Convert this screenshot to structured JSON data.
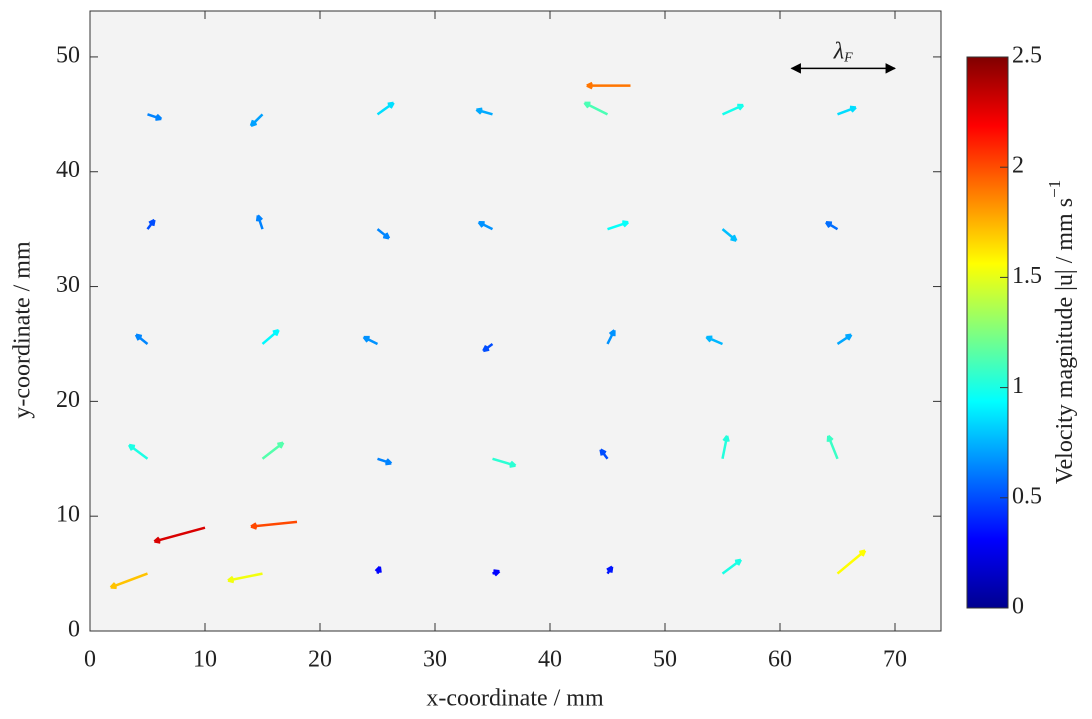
{
  "chart_data": {
    "type": "quiver",
    "xlabel": "x-coordinate / mm",
    "ylabel": "y-coordinate / mm",
    "xlim": [
      0,
      74
    ],
    "ylim": [
      0,
      54
    ],
    "xticks": [
      0,
      10,
      20,
      30,
      40,
      50,
      60,
      70
    ],
    "yticks": [
      0,
      10,
      20,
      30,
      40,
      50
    ],
    "colormap": "jet",
    "colorbar": {
      "label": "Velocity magnitude |u| / mm s",
      "label_exponent": "−1",
      "lim": [
        0,
        2.5
      ],
      "ticks": [
        0,
        0.5,
        1,
        1.5,
        2,
        2.5
      ]
    },
    "annotation": {
      "text": "λ",
      "subscript": "F",
      "x_from": 61,
      "x_to": 70,
      "y": 49
    },
    "vectors": {
      "x": [
        5,
        15,
        25,
        35,
        45,
        55,
        65,
        10,
        18,
        5,
        15,
        25,
        35,
        45,
        55,
        65,
        5,
        15,
        25,
        35,
        45,
        55,
        65,
        5,
        15,
        25,
        35,
        45,
        55,
        65,
        5,
        15,
        25,
        35,
        45,
        55,
        65,
        47
      ],
      "y": [
        5,
        5,
        5,
        5,
        5,
        5,
        5,
        9,
        9.5,
        15,
        15,
        15,
        15,
        15,
        15,
        15,
        25,
        25,
        25,
        25,
        25,
        25,
        25,
        35,
        35,
        35,
        35,
        35,
        35,
        35,
        45,
        45,
        45,
        45,
        45,
        45,
        45,
        47.5
      ],
      "u": [
        -1.6,
        -1.5,
        0.1,
        0.3,
        0.2,
        0.8,
        1.2,
        -2.2,
        -2.0,
        -0.8,
        0.9,
        0.6,
        1.0,
        -0.3,
        0.2,
        -0.4,
        -0.5,
        0.7,
        -0.6,
        -0.4,
        0.3,
        -0.7,
        0.6,
        0.3,
        -0.2,
        0.5,
        -0.6,
        0.9,
        0.6,
        -0.5,
        0.6,
        -0.5,
        0.7,
        -0.7,
        -1.0,
        0.9,
        0.8,
        -1.9
      ],
      "v": [
        -0.6,
        -0.3,
        0.3,
        0.1,
        0.3,
        0.6,
        1.0,
        -0.6,
        -0.2,
        0.6,
        0.7,
        -0.2,
        -0.3,
        0.4,
        1.0,
        1.0,
        0.4,
        0.6,
        0.3,
        -0.3,
        0.6,
        0.3,
        0.4,
        0.4,
        0.6,
        -0.4,
        0.3,
        0.3,
        -0.5,
        0.3,
        -0.2,
        -0.5,
        0.5,
        0.2,
        0.5,
        0.4,
        0.3,
        0.0
      ]
    }
  }
}
